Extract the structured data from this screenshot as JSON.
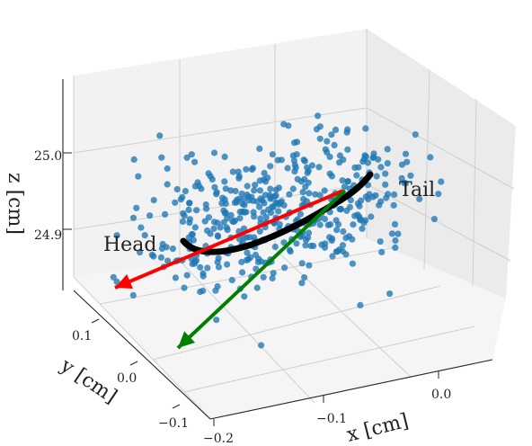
{
  "chart_data": {
    "type": "scatter",
    "projection": "3d",
    "xlabel": "x [cm]",
    "ylabel": "y [cm]",
    "zlabel": "z [cm]",
    "x_ticks": [
      "−0.2",
      "−0.1",
      "0.0"
    ],
    "y_ticks": [
      "−0.1",
      "0.0",
      "0.1"
    ],
    "z_ticks": [
      "24.9",
      "25.0"
    ],
    "grid": true,
    "series": [
      {
        "kind": "scatter-points",
        "color": "#1f77b4",
        "approx_count": 460
      },
      {
        "kind": "centerline-curve",
        "color": "#000000"
      }
    ],
    "vectors": [
      {
        "color": "#ff0000"
      },
      {
        "color": "#008000"
      }
    ],
    "annotations": [
      {
        "text": "Head"
      },
      {
        "text": "Tail"
      }
    ]
  }
}
